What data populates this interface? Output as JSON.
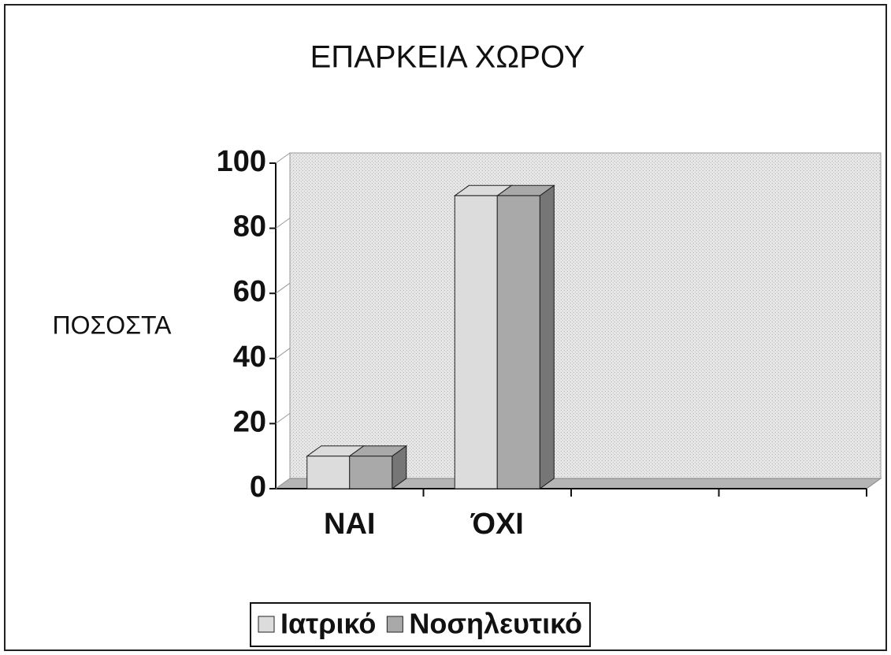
{
  "chart_data": {
    "type": "bar3d",
    "title": "ΕΠΑΡΚΕΙΑ ΧΩΡΟΥ",
    "y_label": "ΠΟΣΟΣΤΑ",
    "categories": [
      "ΝΑΙ",
      "ΌΧΙ",
      null,
      null
    ],
    "series": [
      {
        "name": "Ιατρικό",
        "color": "#dcdcdc",
        "values": [
          10,
          90,
          null,
          null
        ]
      },
      {
        "name": "Νοσηλευτικό",
        "color": "#a9a9a9",
        "values": [
          10,
          90,
          null,
          null
        ]
      }
    ],
    "ylim": [
      0,
      100
    ],
    "yticks": [
      0,
      20,
      40,
      60,
      80,
      100
    ],
    "legend": "bottom"
  }
}
